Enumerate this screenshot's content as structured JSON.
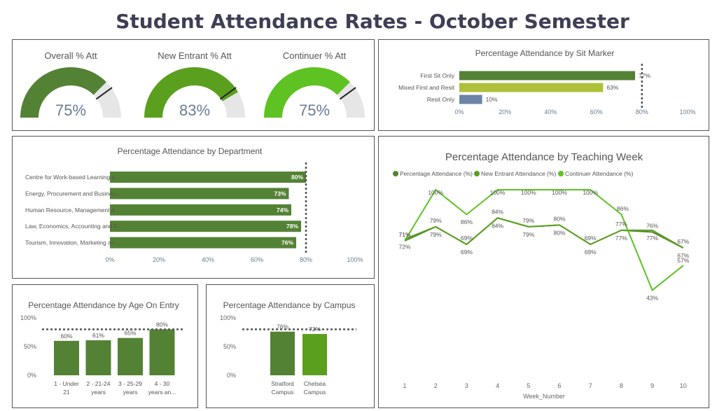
{
  "title": "Student Attendance Rates - October Semester",
  "colors": {
    "dark_green": "#548235",
    "mid_green": "#5aa01e",
    "bright_green": "#5ec222",
    "olive": "#afc03a",
    "slate": "#6c84a6",
    "track": "#e6e6e6",
    "target": "#555555"
  },
  "gauges": [
    {
      "title": "Overall % Att",
      "value": 75,
      "display": "75%",
      "target": 80,
      "color": "#548235"
    },
    {
      "title": "New Entrant % Att",
      "value": 83,
      "display": "83%",
      "target": 80,
      "color": "#5aa01e"
    },
    {
      "title": "Continuer % Att",
      "value": 75,
      "display": "75%",
      "target": 80,
      "color": "#5ec222"
    }
  ],
  "chart_data": [
    {
      "type": "bar",
      "orientation": "horizontal",
      "title": "Percentage Attendance by Sit Marker",
      "categories": [
        "First Sit Only",
        "Mixed First and Resit",
        "Resit Only"
      ],
      "values": [
        77,
        63,
        10
      ],
      "labels": [
        "77%",
        "63%",
        "10%"
      ],
      "colors": [
        "#548235",
        "#afc03a",
        "#6c84a6"
      ],
      "target": 80,
      "xlim": [
        0,
        100
      ],
      "ticks": [
        "0%",
        "20%",
        "40%",
        "60%",
        "80%",
        "100%"
      ]
    },
    {
      "type": "bar",
      "orientation": "horizontal",
      "title": "Percentage Attendance by Department",
      "categories": [
        "Centre for Work-based Learning a...",
        "Energy, Procurement and Busines...",
        "Human Resource, Management a...",
        "Law, Economics, Accounting and F...",
        "Tourism, Innovation, Marketing an..."
      ],
      "values": [
        80,
        73,
        74,
        78,
        76
      ],
      "labels": [
        "80%",
        "73%",
        "74%",
        "78%",
        "76%"
      ],
      "color": "#548235",
      "target": 80,
      "xlim": [
        0,
        100
      ],
      "ticks": [
        "0%",
        "20%",
        "40%",
        "60%",
        "80%",
        "100%"
      ]
    },
    {
      "type": "line",
      "title": "Percentage Attendance by Teaching Week",
      "xlabel": "Week_Number",
      "x": [
        1,
        2,
        3,
        4,
        5,
        6,
        7,
        8,
        9,
        10
      ],
      "series": [
        {
          "name": "Percentage Attendance (%)",
          "values": [
            71,
            79,
            69,
            84,
            79,
            80,
            69,
            77,
            76,
            67
          ],
          "labels": [
            "71%",
            "79%",
            "69%",
            "84%",
            "79%",
            "80%",
            "69%",
            "77%",
            "76%",
            "67%"
          ],
          "color": "#548235"
        },
        {
          "name": "New Entrant Attendance (%)",
          "values": [
            72,
            79,
            69,
            84,
            79,
            80,
            69,
            77,
            77,
            67
          ],
          "labels": [
            "72%",
            "79%",
            "69%",
            "84%",
            "79%",
            "80%",
            "69%",
            "77%",
            "77%",
            "67%"
          ],
          "color": "#5aa01e"
        },
        {
          "name": "Continuer Attendance (%)",
          "values": [
            71,
            100,
            86,
            100,
            100,
            100,
            100,
            86,
            43,
            57
          ],
          "labels": [
            "71%",
            "100%",
            "86%",
            "100%",
            "100%",
            "100%",
            "100%",
            "86%",
            "43%",
            "57%"
          ],
          "color": "#5ec222"
        }
      ],
      "ylim": [
        40,
        100
      ]
    },
    {
      "type": "bar",
      "title": "Percentage Attendance by Age On Entry",
      "categories": [
        [
          "1 - Under",
          "21"
        ],
        [
          "2 - 21-24",
          "years"
        ],
        [
          "3 - 25-29",
          "years"
        ],
        [
          "4 - 30",
          "years an..."
        ]
      ],
      "values": [
        60,
        61,
        65,
        80
      ],
      "labels": [
        "60%",
        "61%",
        "65%",
        "80%"
      ],
      "color": "#548235",
      "target": 80,
      "ylim": [
        0,
        100
      ],
      "ticks": [
        "0%",
        "50%",
        "100%"
      ]
    },
    {
      "type": "bar",
      "title": "Percentage Attendance by Campus",
      "categories": [
        [
          "Stratford",
          "Campus"
        ],
        [
          "Chelsea",
          "Campus"
        ]
      ],
      "values": [
        76,
        72
      ],
      "labels": [
        "76%",
        "72%"
      ],
      "colors": [
        "#548235",
        "#5aa01e"
      ],
      "target": 80,
      "ylim": [
        0,
        100
      ],
      "ticks": [
        "0%",
        "50%",
        "100%"
      ]
    }
  ]
}
